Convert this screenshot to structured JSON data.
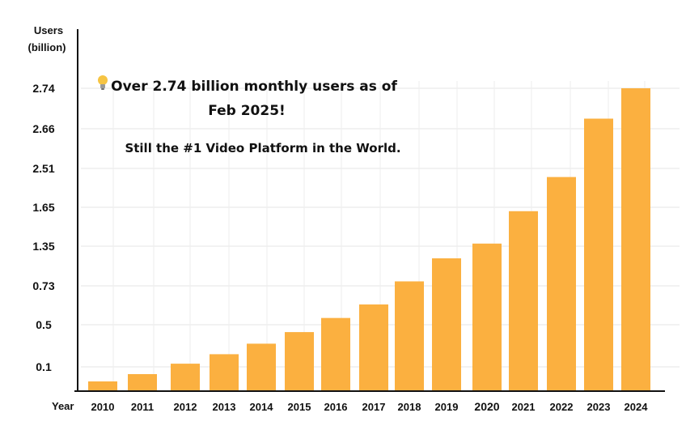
{
  "chart_data": {
    "type": "bar",
    "ylabel": [
      "Users",
      "(billion)"
    ],
    "xlabel": "Year",
    "yticks": [
      "0.1",
      "0.5",
      "0.73",
      "1.35",
      "1.65",
      "2.51",
      "2.66",
      "2.74"
    ],
    "categories": [
      "2010",
      "2011",
      "2012",
      "2013",
      "2014",
      "2015",
      "2016",
      "2017",
      "2018",
      "2019",
      "2020",
      "2021",
      "2022",
      "2023",
      "2024"
    ],
    "values": [
      0.04,
      0.07,
      0.13,
      0.22,
      0.32,
      0.43,
      0.54,
      0.62,
      0.8,
      1.16,
      1.37,
      1.62,
      2.32,
      2.68,
      2.74
    ],
    "bar_color": "#FBB040",
    "grid": true
  },
  "annotation": {
    "headline_line1": "Over 2.74 billion monthly users as of",
    "headline_line2": "Feb 2025!",
    "subline": "Still the #1 Video Platform in the World.",
    "icon": "lightbulb-icon"
  }
}
